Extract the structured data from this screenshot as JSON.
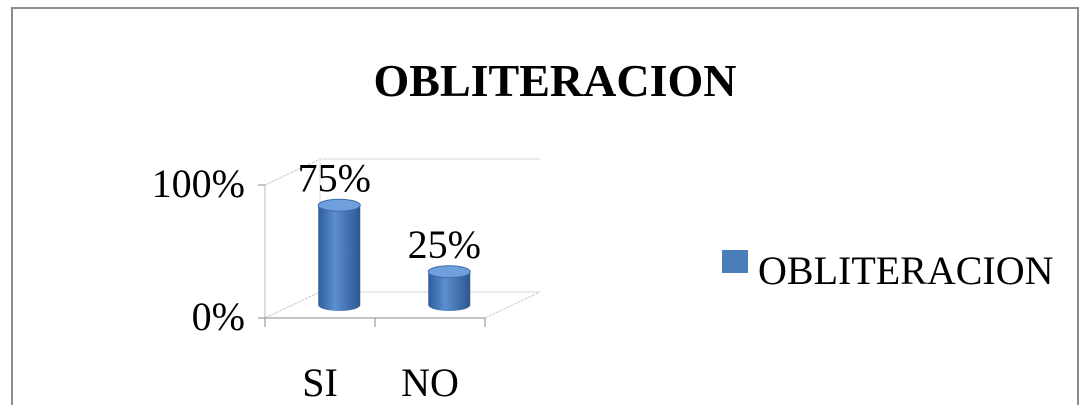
{
  "chart_data": {
    "type": "bar3d",
    "title": "OBLITERACION",
    "categories": [
      "SI",
      "NO"
    ],
    "series": [
      {
        "name": "OBLITERACION",
        "color": "#4a7ebb",
        "values": [
          75,
          25
        ],
        "value_labels": [
          "75%",
          "25%"
        ]
      }
    ],
    "ylim": [
      0,
      100
    ],
    "yticks": [
      {
        "value": 0,
        "label": "0%"
      },
      {
        "value": 100,
        "label": "100%"
      }
    ],
    "grid": true,
    "legend": "right"
  }
}
